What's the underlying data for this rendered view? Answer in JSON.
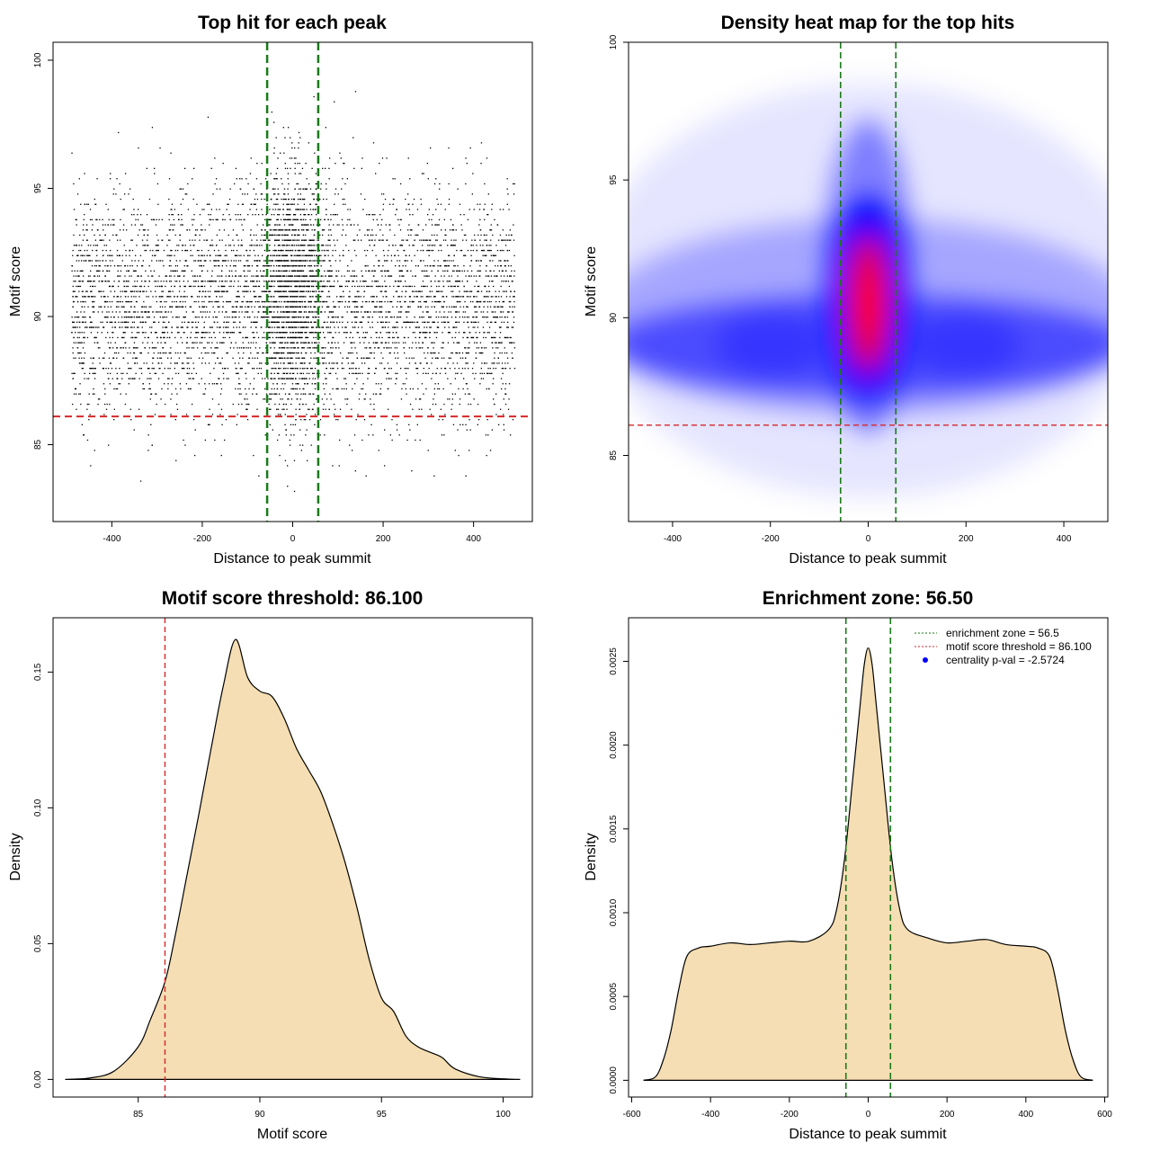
{
  "colors": {
    "threshold_line": "#d62728",
    "zone_line": "#1a7a1a",
    "density_fill": "#f5deb3",
    "points": "#000000",
    "heat_low": "#ffffff",
    "heat_mid": "#0000ff",
    "heat_high": "#ff0000"
  },
  "chart_data": [
    {
      "type": "scatter",
      "title": "Top hit for each peak",
      "xlabel": "Distance to peak summit",
      "ylabel": "Motif score",
      "xlim": [
        -530,
        530
      ],
      "ylim": [
        82,
        100.7
      ],
      "xticks": [
        -400,
        -200,
        0,
        200,
        400
      ],
      "xtick_labels": [
        "-400",
        "-200",
        "0",
        "200",
        "400"
      ],
      "yticks": [
        85,
        90,
        95,
        100
      ],
      "ytick_labels": [
        "85",
        "90",
        "95",
        "100"
      ],
      "threshold": 86.1,
      "enrichment_zone": [
        -56.5,
        56.5
      ],
      "distance_range": [
        -490,
        490
      ],
      "score_peak": 89.0,
      "central_score_peak": 91.0,
      "score_range_bulk": [
        84,
        99.5
      ],
      "central_score_max": 100.0
    },
    {
      "type": "heatmap",
      "title": "Density heat map for the top hits",
      "xlabel": "Distance to peak summit",
      "ylabel": "Motif score",
      "xlim": [
        -490,
        490
      ],
      "ylim": [
        82.6,
        100
      ],
      "xticks": [
        -400,
        -200,
        0,
        200,
        400
      ],
      "xtick_labels": [
        "-400",
        "-200",
        "0",
        "200",
        "400"
      ],
      "yticks": [
        85,
        90,
        95,
        100
      ],
      "ytick_labels": [
        "85",
        "90",
        "95",
        "100"
      ],
      "threshold": 86.1,
      "enrichment_zone": [
        -56.5,
        56.5
      ],
      "color_scale": [
        "white",
        "blue",
        "red"
      ],
      "background_band_center_score": 89.0,
      "central_hotspot": {
        "x": 0,
        "score": 90.5
      }
    },
    {
      "type": "area",
      "title": "Motif score threshold: 86.100",
      "xlabel": "Motif score",
      "ylabel": "Density",
      "xlim": [
        81.5,
        101.2
      ],
      "ylim": [
        -0.0065,
        0.17
      ],
      "xticks": [
        85,
        90,
        95,
        100
      ],
      "xtick_labels": [
        "85",
        "90",
        "95",
        "100"
      ],
      "yticks": [
        0.0,
        0.05,
        0.1,
        0.15
      ],
      "ytick_labels": [
        "0.00",
        "0.05",
        "0.10",
        "0.15"
      ],
      "threshold": 86.1,
      "x": [
        82.0,
        83.0,
        84.0,
        85.0,
        85.5,
        86.1,
        86.5,
        87.0,
        87.5,
        88.0,
        88.5,
        89.0,
        89.5,
        90.0,
        90.5,
        91.0,
        91.5,
        92.0,
        92.5,
        93.0,
        93.5,
        94.0,
        94.5,
        95.0,
        95.5,
        96.0,
        96.5,
        97.0,
        97.5,
        98.0,
        99.0,
        100.0,
        100.7
      ],
      "y": [
        0.0,
        0.0005,
        0.003,
        0.012,
        0.022,
        0.036,
        0.052,
        0.075,
        0.098,
        0.122,
        0.145,
        0.162,
        0.148,
        0.143,
        0.141,
        0.133,
        0.122,
        0.114,
        0.106,
        0.094,
        0.08,
        0.063,
        0.044,
        0.03,
        0.025,
        0.016,
        0.012,
        0.01,
        0.008,
        0.004,
        0.001,
        0.0002,
        0.0
      ]
    },
    {
      "type": "area",
      "title": "Enrichment zone: 56.50",
      "xlabel": "Distance to peak summit",
      "ylabel": "Density",
      "xlim": [
        -608,
        608
      ],
      "ylim": [
        -0.0001,
        0.00276
      ],
      "xticks": [
        -600,
        -400,
        -200,
        0,
        200,
        400,
        600
      ],
      "xtick_labels": [
        "-600",
        "-400",
        "-200",
        "0",
        "200",
        "400",
        "600"
      ],
      "yticks": [
        0.0,
        0.0005,
        0.001,
        0.0015,
        0.002,
        0.0025
      ],
      "ytick_labels": [
        "0.0000",
        "0.0005",
        "0.0010",
        "0.0015",
        "0.0020",
        "0.0025"
      ],
      "enrichment_zone": [
        -56.5,
        56.5
      ],
      "x": [
        -570,
        -540,
        -520,
        -500,
        -480,
        -460,
        -430,
        -400,
        -350,
        -300,
        -250,
        -200,
        -150,
        -100,
        -80,
        -60,
        -40,
        -20,
        -10,
        0,
        10,
        20,
        40,
        60,
        80,
        100,
        150,
        200,
        250,
        300,
        350,
        400,
        430,
        460,
        480,
        500,
        520,
        540,
        570
      ],
      "y": [
        0.0,
        2e-05,
        0.00012,
        0.0003,
        0.00055,
        0.00074,
        0.00079,
        0.0008,
        0.00082,
        0.00081,
        0.00082,
        0.00083,
        0.00083,
        0.0009,
        0.00102,
        0.00132,
        0.00178,
        0.00225,
        0.00248,
        0.00258,
        0.00248,
        0.00225,
        0.00178,
        0.00132,
        0.00102,
        0.0009,
        0.00085,
        0.00082,
        0.00083,
        0.00084,
        0.00081,
        0.0008,
        0.00079,
        0.00074,
        0.00055,
        0.0003,
        0.00012,
        2e-05,
        0.0
      ],
      "legend": {
        "position": "top-right",
        "entries": [
          {
            "label": "enrichment zone = 56.5",
            "style": "dotted-line",
            "color": "#1a7a1a"
          },
          {
            "label": "motif score threshold = 86.100",
            "style": "dotted-line",
            "color": "#d62728"
          },
          {
            "label": "centrality p-val = -2.5724",
            "style": "point",
            "color": "#0000ff"
          }
        ]
      }
    }
  ]
}
